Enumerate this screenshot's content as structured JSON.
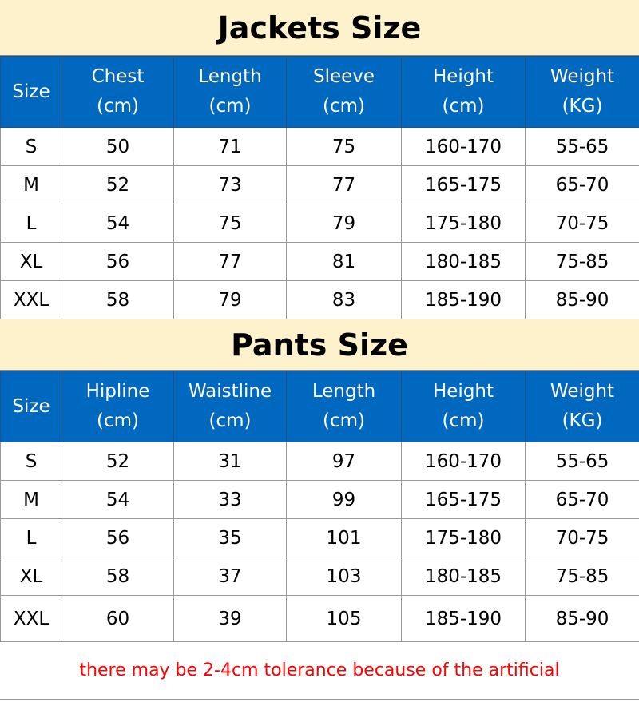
{
  "colors": {
    "title_bg": "#fef2cc",
    "header_bg": "#0068be",
    "note": "#ff0000"
  },
  "jackets": {
    "title": "Jackets Size",
    "headers": [
      [
        "Size",
        ""
      ],
      [
        "Chest",
        "(cm)"
      ],
      [
        "Length",
        "(cm)"
      ],
      [
        "Sleeve",
        "(cm)"
      ],
      [
        "Height",
        "(cm)"
      ],
      [
        "Weight",
        "(KG)"
      ]
    ],
    "rows": [
      [
        "S",
        "50",
        "71",
        "75",
        "160-170",
        "55-65"
      ],
      [
        "M",
        "52",
        "73",
        "77",
        "165-175",
        "65-70"
      ],
      [
        "L",
        "54",
        "75",
        "79",
        "175-180",
        "70-75"
      ],
      [
        "XL",
        "56",
        "77",
        "81",
        "180-185",
        "75-85"
      ],
      [
        "XXL",
        "58",
        "79",
        "83",
        "185-190",
        "85-90"
      ]
    ]
  },
  "pants": {
    "title": "Pants Size",
    "headers": [
      [
        "Size",
        ""
      ],
      [
        "Hipline",
        "(cm)"
      ],
      [
        "Waistline",
        "(cm)"
      ],
      [
        "Length",
        "(cm)"
      ],
      [
        "Height",
        "(cm)"
      ],
      [
        "Weight",
        "(KG)"
      ]
    ],
    "rows": [
      [
        "S",
        "52",
        "31",
        "97",
        "160-170",
        "55-65"
      ],
      [
        "M",
        "54",
        "33",
        "99",
        "165-175",
        "65-70"
      ],
      [
        "L",
        "56",
        "35",
        "101",
        "175-180",
        "70-75"
      ],
      [
        "XL",
        "58",
        "37",
        "103",
        "180-185",
        "75-85"
      ],
      [
        "XXL",
        "60",
        "39",
        "105",
        "185-190",
        "85-90"
      ]
    ]
  },
  "note": "there may be 2-4cm tolerance because of the artificial"
}
